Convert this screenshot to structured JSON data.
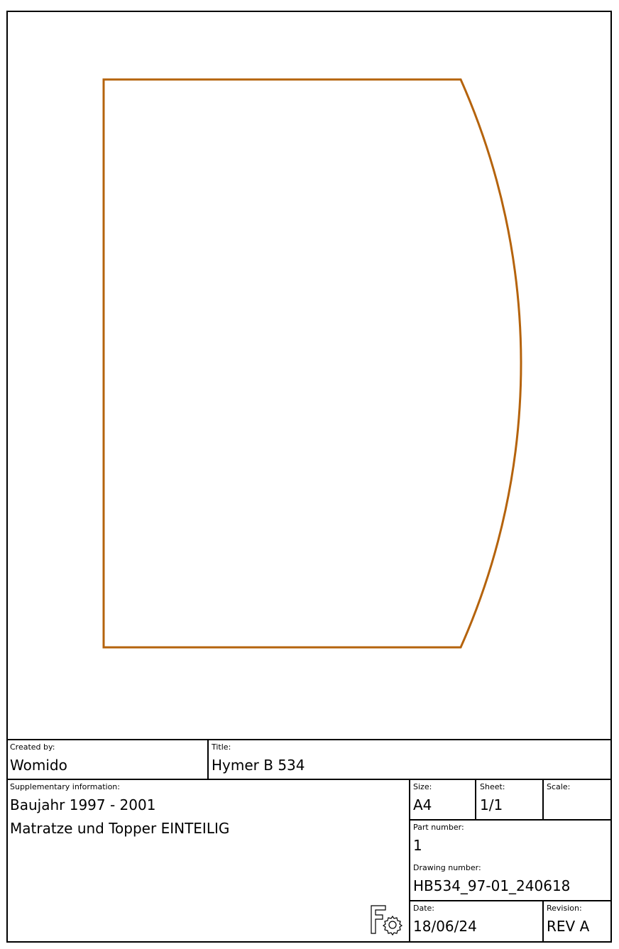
{
  "colors": {
    "outline": "#b5630c",
    "frame": "#000000"
  },
  "drawing": {
    "shape": "rectangle with convex arc right side"
  },
  "title_block": {
    "created_by": {
      "label": "Created by:",
      "value": "Womido"
    },
    "title": {
      "label": "Title:",
      "value": "Hymer B 534"
    },
    "supplementary": {
      "label": "Supplementary information:",
      "lines": [
        "Baujahr 1997 - 2001",
        "Matratze und Topper EINTEILIG"
      ]
    },
    "size": {
      "label": "Size:",
      "value": "A4"
    },
    "sheet": {
      "label": "Sheet:",
      "value": "1/1"
    },
    "scale": {
      "label": "Scale:",
      "value": ""
    },
    "part_number": {
      "label": "Part number:",
      "value": "1"
    },
    "drawing_number": {
      "label": "Drawing number:",
      "value": "HB534_97-01_240618"
    },
    "date": {
      "label": "Date:",
      "value": "18/06/24"
    },
    "revision": {
      "label": "Revision:",
      "value": "REV A"
    },
    "logo_icon": "freecad-logo-icon"
  }
}
